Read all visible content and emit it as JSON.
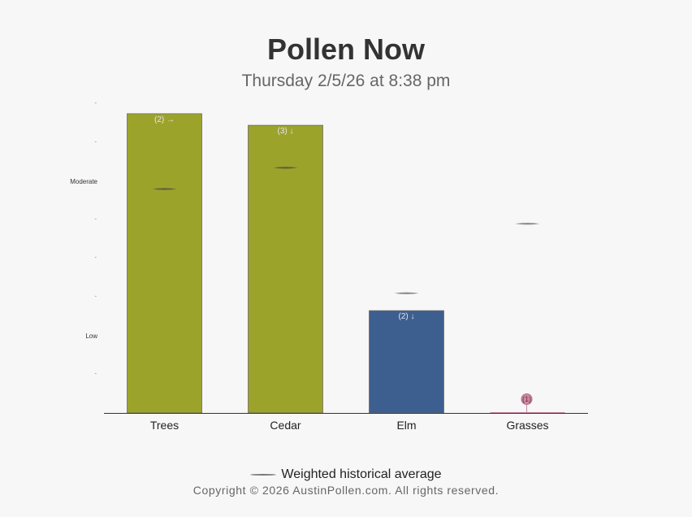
{
  "chart_data": {
    "type": "bar",
    "title": "Pollen Now",
    "subtitle": "Thursday 2/5/26 at 8:38 pm",
    "categories": [
      "Trees",
      "Cedar",
      "Elm",
      "Grasses"
    ],
    "values": [
      7.75,
      7.45,
      2.65,
      0.0
    ],
    "historical_average": [
      5.8,
      6.35,
      3.1,
      4.9
    ],
    "bar_labels": [
      "(2) →",
      "(3) ↓",
      "(2) ↓",
      "(1)"
    ],
    "bar_colors": [
      "#9ca32b",
      "#9ca32b",
      "#3d5f8f",
      "#c98aa2"
    ],
    "ytick_labels": [
      "Low",
      "Moderate"
    ],
    "ytick_label_values": [
      2,
      6
    ],
    "ylim": [
      0,
      8
    ],
    "minor_ticks": [
      1,
      3,
      4,
      5,
      7,
      8
    ],
    "minor_tick_label": "-",
    "legend": {
      "label": "Weighted historical average",
      "position": "bottom"
    },
    "grid": false
  },
  "copyright": "Copyright © 2026 AustinPollen.com.  All rights reserved."
}
